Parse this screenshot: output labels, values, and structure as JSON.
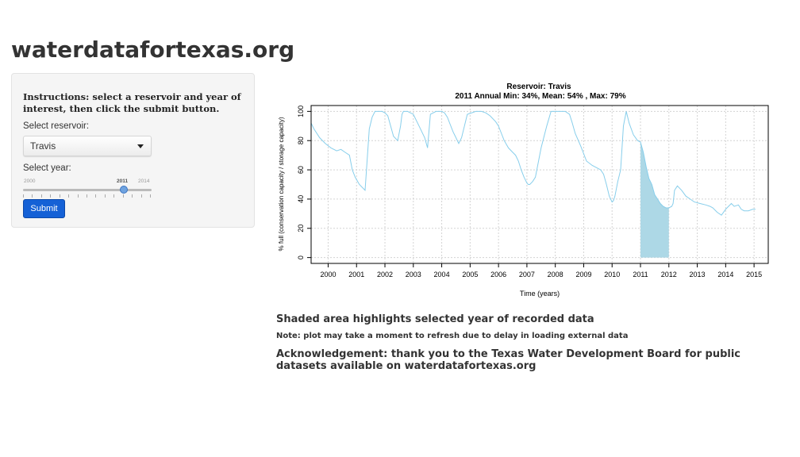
{
  "app": {
    "title": "waterdatafortexas.org"
  },
  "sidebar": {
    "instructions": "Instructions: select a reservoir and year of interest, then click the submit button.",
    "reservoir_label": "Select reservoir:",
    "reservoir_value": "Travis",
    "year_label": "Select year:",
    "year_slider": {
      "min_label": "2000",
      "max_label": "2014",
      "value_label": "2011",
      "min": 2000,
      "max": 2014,
      "value": 2011
    },
    "submit_label": "Submit"
  },
  "chart_data": {
    "type": "line",
    "title": "Reservoir: Travis",
    "subtitle": "2011 Annual Min: 34%, Mean: 54% , Max: 79%",
    "xlabel": "Time (years)",
    "ylabel": "% full (conservation capacity / storage capacity)",
    "xlim": [
      1999.4,
      2015.5
    ],
    "ylim": [
      -4,
      104
    ],
    "x_ticks": [
      2000,
      2001,
      2002,
      2003,
      2004,
      2005,
      2006,
      2007,
      2008,
      2009,
      2010,
      2011,
      2012,
      2013,
      2014,
      2015
    ],
    "y_ticks": [
      0,
      20,
      40,
      60,
      80,
      100
    ],
    "grid": true,
    "line_color": "#87ceeb",
    "shade_color": "#add8e6",
    "highlight_year": 2011,
    "series": [
      {
        "x": [
          1999.4,
          1999.5,
          1999.7,
          1999.9,
          2000.1,
          2000.3,
          2000.45,
          2000.6,
          2000.75,
          2000.8,
          2000.85,
          2000.95,
          2001.1,
          2001.3,
          2001.45,
          2001.55,
          2001.65,
          2001.8,
          2001.9,
          2002.0,
          2002.1,
          2002.2,
          2002.3,
          2002.45,
          2002.55,
          2002.6,
          2002.65,
          2002.7,
          2002.8,
          2003.0,
          2003.2,
          2003.4,
          2003.5,
          2003.6,
          2003.8,
          2004.0,
          2004.1,
          2004.2,
          2004.3,
          2004.4,
          2004.5,
          2004.55,
          2004.6,
          2004.7,
          2004.9,
          2005.2,
          2005.4,
          2005.55,
          2005.7,
          2005.9,
          2006.0,
          2006.1,
          2006.2,
          2006.35,
          2006.5,
          2006.6,
          2006.7,
          2006.8,
          2006.9,
          2007.0,
          2007.05,
          2007.1,
          2007.2,
          2007.3,
          2007.5,
          2007.7,
          2007.85,
          2008.0,
          2008.2,
          2008.35,
          2008.5,
          2008.6,
          2008.7,
          2008.9,
          2009.1,
          2009.3,
          2009.5,
          2009.6,
          2009.7,
          2009.8,
          2009.9,
          2010.0,
          2010.05,
          2010.1,
          2010.2,
          2010.3,
          2010.4,
          2010.5,
          2010.6,
          2010.75,
          2010.9,
          2011.0,
          2011.1,
          2011.2,
          2011.3,
          2011.4,
          2011.5,
          2011.6,
          2011.7,
          2011.8,
          2011.9,
          2012.0,
          2012.1,
          2012.15,
          2012.2,
          2012.3,
          2012.45,
          2012.6,
          2012.75,
          2012.9,
          2013.1,
          2013.3,
          2013.45,
          2013.55,
          2013.7,
          2013.85,
          2014.0,
          2014.1,
          2014.2,
          2014.3,
          2014.45,
          2014.55,
          2014.65,
          2014.8,
          2014.95,
          2015.05
        ],
        "y": [
          92,
          88,
          82,
          78,
          75,
          73,
          74,
          72,
          70,
          65,
          60,
          55,
          50,
          46,
          88,
          96,
          100,
          100,
          100,
          99,
          97,
          90,
          83,
          80,
          90,
          98,
          100,
          100,
          100,
          98,
          90,
          82,
          75,
          98,
          100,
          100,
          99,
          96,
          91,
          86,
          82,
          80,
          78,
          82,
          98,
          100,
          100,
          99,
          97,
          93,
          90,
          85,
          80,
          75,
          72,
          70,
          66,
          60,
          55,
          51,
          50,
          50,
          52,
          55,
          75,
          90,
          100,
          100,
          100,
          100,
          98,
          92,
          85,
          76,
          66,
          63,
          61,
          60,
          57,
          50,
          42,
          38,
          39,
          42,
          52,
          60,
          90,
          100,
          92,
          84,
          80,
          79,
          72,
          62,
          54,
          50,
          43,
          40,
          37,
          35,
          34,
          34,
          35,
          37,
          46,
          49,
          46,
          42,
          40,
          38,
          37,
          36,
          35,
          34,
          31,
          29,
          33,
          35,
          37,
          35,
          36,
          33,
          32,
          32,
          33,
          33
        ]
      }
    ]
  },
  "footer": {
    "shaded_note": "Shaded area highlights selected year of recorded data",
    "delay_note": "Note: plot may take a moment to refresh due to delay in loading external data",
    "acknowledgement": "Acknowledgement: thank you to the Texas Water Development Board for public datasets available on waterdatafortexas.org"
  }
}
